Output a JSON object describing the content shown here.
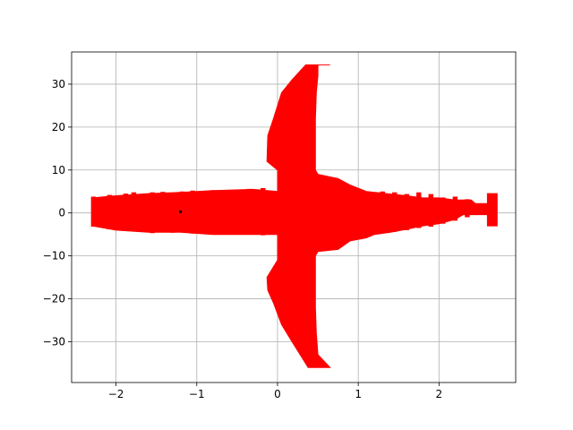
{
  "chart_data": {
    "type": "area",
    "title": "",
    "xlabel": "",
    "ylabel": "",
    "xlim": [
      -2.55,
      2.95
    ],
    "ylim": [
      -39.5,
      37.5
    ],
    "xticks": [
      -2,
      -1,
      0,
      1,
      2
    ],
    "yticks": [
      -30,
      -20,
      -10,
      0,
      10,
      20,
      30
    ],
    "xtick_labels": [
      "−2",
      "−1",
      "0",
      "1",
      "2"
    ],
    "ytick_labels": [
      "−30",
      "−20",
      "−10",
      "0",
      "10",
      "20",
      "30"
    ],
    "grid": true,
    "legend": "none",
    "series": [
      {
        "color": "#ff0000",
        "description_points": [
          [
            0.65,
            34.5
          ],
          [
            0.5,
            34.5
          ],
          [
            0.5,
            32
          ],
          [
            0.48,
            28
          ],
          [
            0.47,
            22
          ],
          [
            0.47,
            15
          ],
          [
            0.47,
            10
          ],
          [
            0.5,
            9
          ],
          [
            0.75,
            8
          ],
          [
            0.9,
            6.5
          ],
          [
            1.1,
            5
          ],
          [
            1.35,
            4.5
          ],
          [
            1.6,
            4
          ],
          [
            1.8,
            3.5
          ],
          [
            2.0,
            3.5
          ],
          [
            2.2,
            3.0
          ],
          [
            2.4,
            3.0
          ],
          [
            2.45,
            2.2
          ],
          [
            2.6,
            2.2
          ],
          [
            2.6,
            4.5
          ],
          [
            2.72,
            4.5
          ],
          [
            2.72,
            -3.0
          ],
          [
            2.6,
            -3.0
          ],
          [
            2.6,
            -0.4
          ],
          [
            2.3,
            -0.4
          ],
          [
            2.2,
            -1.5
          ],
          [
            2.0,
            -2.5
          ],
          [
            1.8,
            -3.0
          ],
          [
            1.6,
            -3.8
          ],
          [
            1.4,
            -4.5
          ],
          [
            1.2,
            -5
          ],
          [
            1.1,
            -5.8
          ],
          [
            0.9,
            -6.5
          ],
          [
            0.75,
            -8.5
          ],
          [
            0.5,
            -9
          ],
          [
            0.47,
            -10
          ],
          [
            0.47,
            -15
          ],
          [
            0.47,
            -22
          ],
          [
            0.48,
            -28
          ],
          [
            0.5,
            -33
          ],
          [
            0.65,
            -36
          ],
          [
            0.38,
            -36
          ],
          [
            0.18,
            -30
          ],
          [
            0.05,
            -26
          ],
          [
            -0.05,
            -21
          ],
          [
            -0.12,
            -18
          ],
          [
            -0.13,
            -15
          ],
          [
            0.0,
            -11
          ],
          [
            0.0,
            -5
          ],
          [
            -0.8,
            -5
          ],
          [
            -1.2,
            -4.5
          ],
          [
            -1.6,
            -4.5
          ],
          [
            -2.0,
            -4
          ],
          [
            -2.3,
            -3
          ],
          [
            -2.3,
            3.5
          ],
          [
            -2.0,
            4
          ],
          [
            -1.6,
            4.5
          ],
          [
            -1.2,
            4.8
          ],
          [
            -0.8,
            5.2
          ],
          [
            -0.3,
            5.5
          ],
          [
            0.0,
            5.0
          ],
          [
            0.0,
            10
          ],
          [
            -0.13,
            12
          ],
          [
            -0.12,
            18
          ],
          [
            -0.05,
            22
          ],
          [
            0.05,
            28
          ],
          [
            0.18,
            31
          ],
          [
            0.35,
            34.5
          ]
        ]
      }
    ]
  }
}
